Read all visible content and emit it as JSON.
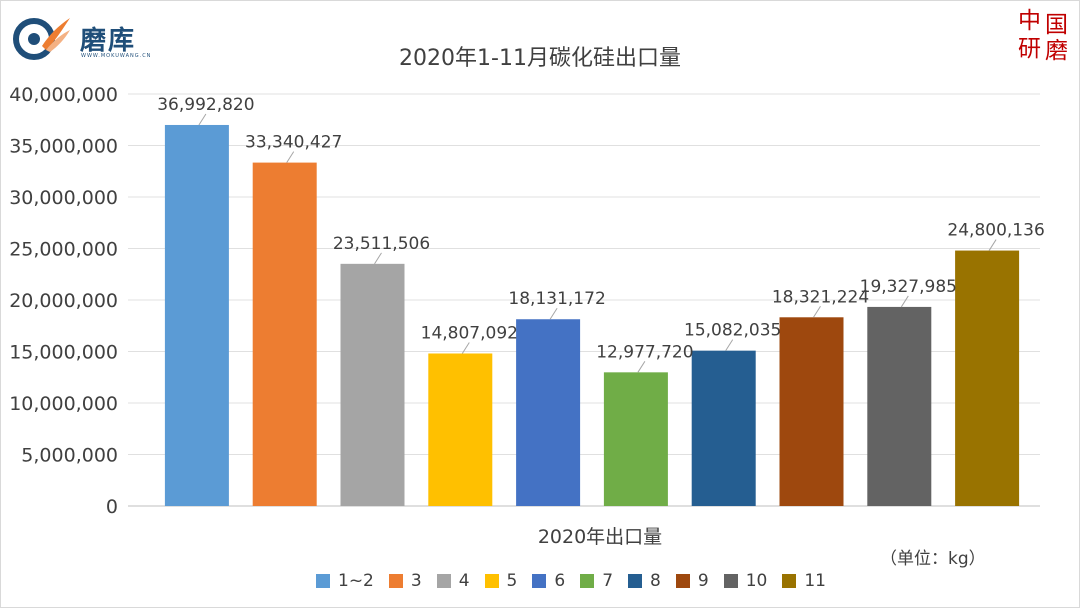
{
  "logo": {
    "name": "磨库",
    "subtitle": "WWW.MOKUWANG.CN",
    "icon": "mokuwang-logo"
  },
  "seal": {
    "chars": [
      "中",
      "国",
      "研",
      "磨"
    ],
    "icon": "china-grinding-seal"
  },
  "unit_label": "（单位：kg）",
  "chart_data": {
    "type": "bar",
    "title": "2020年1-11月碳化硅出口量",
    "xlabel": "2020年出口量",
    "ylabel": "",
    "ylim": [
      0,
      40000000
    ],
    "yticks": [
      "0",
      "5,000,000",
      "10,000,000",
      "15,000,000",
      "20,000,000",
      "25,000,000",
      "30,000,000",
      "35,000,000",
      "40,000,000"
    ],
    "grid": true,
    "legend_position": "bottom",
    "series": [
      {
        "name": "1~2",
        "value": 36992820,
        "label": "36,992,820",
        "color": "#5b9bd5"
      },
      {
        "name": "3",
        "value": 33340427,
        "label": "33,340,427",
        "color": "#ed7d31"
      },
      {
        "name": "4",
        "value": 23511506,
        "label": "23,511,506",
        "color": "#a5a5a5"
      },
      {
        "name": "5",
        "value": 14807092,
        "label": "14,807,092",
        "color": "#ffc000"
      },
      {
        "name": "6",
        "value": 18131172,
        "label": "18,131,172",
        "color": "#4472c4"
      },
      {
        "name": "7",
        "value": 12977720,
        "label": "12,977,720",
        "color": "#70ad47"
      },
      {
        "name": "8",
        "value": 15082035,
        "label": "15,082,035",
        "color": "#255e91"
      },
      {
        "name": "9",
        "value": 18321224,
        "label": "18,321,224",
        "color": "#9e480e"
      },
      {
        "name": "10",
        "value": 19327985,
        "label": "19,327,985",
        "color": "#636363"
      },
      {
        "name": "11",
        "value": 24800136,
        "label": "24,800,136",
        "color": "#997300"
      }
    ]
  }
}
